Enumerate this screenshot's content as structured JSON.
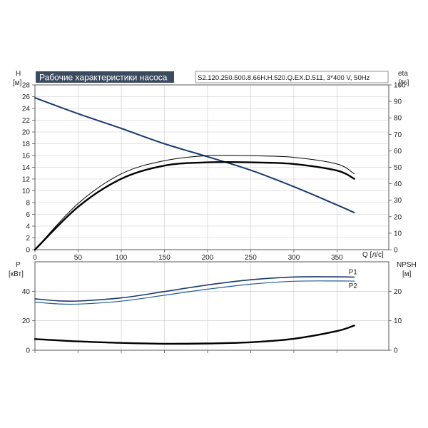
{
  "header": {
    "title": "Рабочие характеристики насоса",
    "model": "S2.120.250.500.8.66H.H.520.Q.EX.D.511, 3*400 V, 50Hz"
  },
  "colors": {
    "navy": "#1a3a6b",
    "blue": "#1f5c99",
    "black": "#000000",
    "title_bg": "#3b4a5e"
  },
  "chart_data": [
    {
      "type": "line",
      "name": "Performance",
      "left_axis": {
        "label": "H",
        "unit": "[м]",
        "ylim": [
          0,
          28
        ],
        "ticks": [
          0,
          2,
          4,
          6,
          8,
          10,
          12,
          14,
          16,
          18,
          20,
          22,
          24,
          26,
          28
        ]
      },
      "right_axis": {
        "label": "eta",
        "unit": "[%]",
        "ylim": [
          0,
          100
        ],
        "ticks": [
          0,
          10,
          20,
          30,
          40,
          50,
          60,
          70,
          80,
          90,
          100
        ]
      },
      "x_axis": {
        "label": "Q [л/с]",
        "xlim": [
          0,
          410
        ],
        "ticks": [
          0,
          50,
          100,
          150,
          200,
          250,
          300,
          350
        ]
      },
      "series": [
        {
          "axis": "left",
          "color": "navy",
          "width": 2,
          "x": [
            0,
            50,
            100,
            150,
            200,
            250,
            300,
            350,
            370
          ],
          "y": [
            25.8,
            23.1,
            20.6,
            18.0,
            15.8,
            13.5,
            10.7,
            7.6,
            6.3
          ]
        },
        {
          "axis": "right",
          "color": "black",
          "width": 1,
          "x": [
            0,
            50,
            100,
            150,
            200,
            250,
            300,
            350,
            370
          ],
          "y": [
            0,
            28,
            46,
            54,
            57,
            57,
            56,
            52,
            46
          ]
        },
        {
          "axis": "right",
          "color": "black",
          "width": 2.4,
          "x": [
            0,
            50,
            100,
            150,
            200,
            250,
            300,
            350,
            370
          ],
          "y": [
            0,
            26,
            43,
            51,
            53,
            53,
            52,
            48,
            43
          ]
        }
      ]
    },
    {
      "type": "line",
      "name": "Power / NPSH",
      "left_axis": {
        "label": "P",
        "unit": "[кВт]",
        "ylim": [
          0,
          60
        ],
        "ticks": [
          0,
          20,
          40
        ]
      },
      "right_axis": {
        "label": "NPSH",
        "unit": "[м]",
        "ylim": [
          0,
          30
        ],
        "ticks": [
          0,
          10,
          20
        ]
      },
      "x_axis": {
        "xlim": [
          0,
          410
        ],
        "ticks": [
          0,
          50,
          100,
          150,
          200,
          250,
          300,
          350
        ]
      },
      "series": [
        {
          "name": "P1",
          "axis": "left",
          "color": "navy",
          "width": 1.6,
          "x": [
            0,
            25,
            50,
            100,
            150,
            200,
            250,
            300,
            350,
            370
          ],
          "y": [
            34.9,
            33.6,
            33.4,
            35.5,
            39.8,
            44.3,
            47.8,
            49.7,
            49.8,
            49.6
          ]
        },
        {
          "name": "P2",
          "axis": "left",
          "color": "blue",
          "width": 1.2,
          "x": [
            0,
            25,
            50,
            100,
            150,
            200,
            250,
            300,
            350,
            370
          ],
          "y": [
            32.7,
            31.5,
            31.3,
            33.3,
            37.3,
            41.4,
            44.8,
            46.8,
            47.0,
            46.9
          ]
        },
        {
          "name": "NPSH",
          "axis": "right",
          "color": "black",
          "width": 2.4,
          "x": [
            0,
            50,
            100,
            150,
            200,
            250,
            300,
            350,
            370
          ],
          "y": [
            3.8,
            3.0,
            2.5,
            2.2,
            2.3,
            2.7,
            3.9,
            6.5,
            8.4
          ]
        }
      ]
    }
  ]
}
